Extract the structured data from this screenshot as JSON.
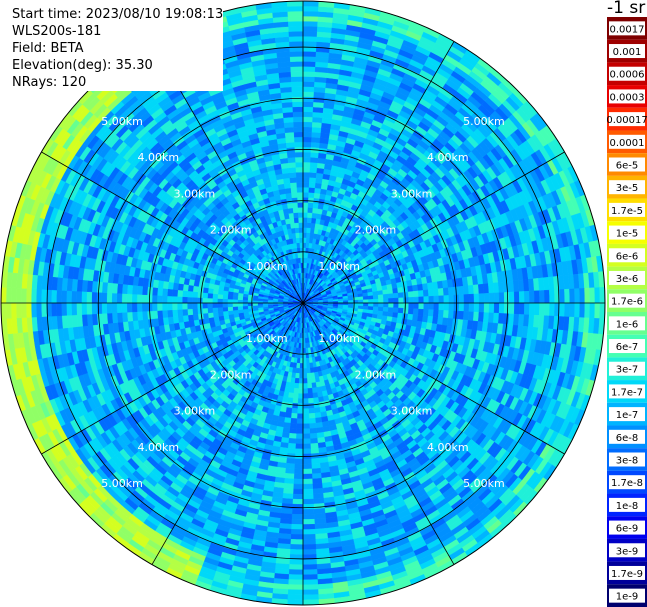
{
  "header": {
    "start_time": "Start time: 2023/08/10 19:08:13",
    "instrument": "WLS200s-181",
    "field": "Field: BETA",
    "elevation": "Elevation(deg): 35.30",
    "nrays": "NRays: 120"
  },
  "colorbar": {
    "unit_label": "-1 sr",
    "levels": [
      {
        "label": "0.0017",
        "color": "#7f0000"
      },
      {
        "label": "0.001",
        "color": "#9e0000"
      },
      {
        "label": "0.0006",
        "color": "#c40000"
      },
      {
        "label": "0.0003",
        "color": "#e80000"
      },
      {
        "label": "0.00017",
        "color": "#ff2a00"
      },
      {
        "label": "0.0001",
        "color": "#ff5a00"
      },
      {
        "label": "6e-5",
        "color": "#ff8a00"
      },
      {
        "label": "3e-5",
        "color": "#ffb400"
      },
      {
        "label": "1.7e-5",
        "color": "#ffdd00"
      },
      {
        "label": "1e-5",
        "color": "#f6ff00"
      },
      {
        "label": "6e-6",
        "color": "#d4ff20"
      },
      {
        "label": "3e-6",
        "color": "#b4ff44"
      },
      {
        "label": "1.7e-6",
        "color": "#90ff66"
      },
      {
        "label": "1e-6",
        "color": "#66ff90"
      },
      {
        "label": "6e-7",
        "color": "#44ffb4"
      },
      {
        "label": "3e-7",
        "color": "#20f0d8"
      },
      {
        "label": "1.7e-7",
        "color": "#00d8f8"
      },
      {
        "label": "1e-7",
        "color": "#00b4ff"
      },
      {
        "label": "6e-8",
        "color": "#0090ff"
      },
      {
        "label": "3e-8",
        "color": "#006cff"
      },
      {
        "label": "1.7e-8",
        "color": "#0048ff"
      },
      {
        "label": "1e-8",
        "color": "#0024ff"
      },
      {
        "label": "6e-9",
        "color": "#0000ee"
      },
      {
        "label": "3e-9",
        "color": "#0000c4"
      },
      {
        "label": "1.7e-9",
        "color": "#00009a"
      },
      {
        "label": "1e-9",
        "color": "#00006e"
      }
    ]
  },
  "chart_data": {
    "type": "heatmap",
    "projection": "polar",
    "field": "BETA",
    "elevation_deg": 35.3,
    "n_rays": 120,
    "range_rings_km": [
      1.0,
      2.0,
      3.0,
      4.0,
      5.0
    ],
    "range_ring_labels": [
      "1.00km",
      "2.00km",
      "3.00km",
      "4.00km",
      "5.00km"
    ],
    "max_range_km": 5.9,
    "spokes_every_deg": 30,
    "color_scale": "log",
    "value_range": [
      1e-09,
      0.0017
    ],
    "typical_value": 1e-07,
    "near_range_value": 3e-08,
    "edge_enhanced_value": 3e-06,
    "edge_enhanced_sector": "west-southwest"
  }
}
